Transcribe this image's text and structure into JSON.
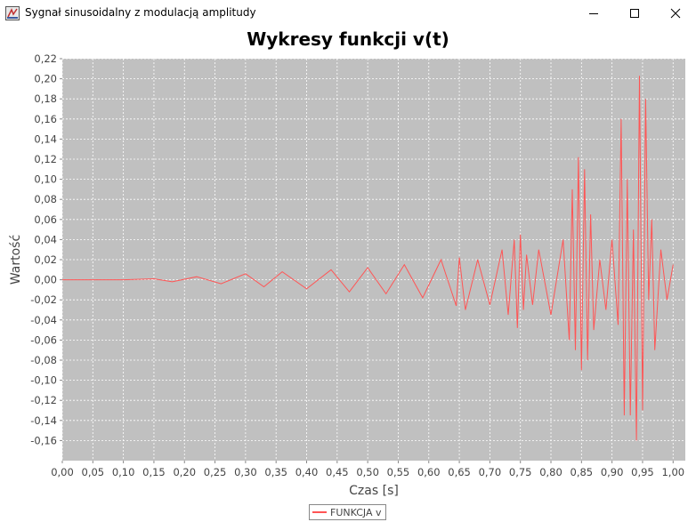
{
  "window": {
    "title": "Sygnał sinusoidalny z modulacją amplitudy",
    "icon": "java-app-icon",
    "controls": [
      "minimize-icon",
      "maximize-icon",
      "close-icon"
    ]
  },
  "chart_data": {
    "type": "line",
    "title": "Wykresy funkcji v(t)",
    "xlabel": "Czas [s]",
    "ylabel": "Wartość",
    "xlim": [
      0.0,
      1.02
    ],
    "ylim": [
      -0.18,
      0.22
    ],
    "x_ticks": [
      "0,00",
      "0,05",
      "0,10",
      "0,15",
      "0,20",
      "0,25",
      "0,30",
      "0,35",
      "0,40",
      "0,45",
      "0,50",
      "0,55",
      "0,60",
      "0,65",
      "0,70",
      "0,75",
      "0,80",
      "0,85",
      "0,90",
      "0,95",
      "1,00"
    ],
    "y_ticks": [
      "-0,16",
      "-0,14",
      "-0,12",
      "-0,10",
      "-0,08",
      "-0,06",
      "-0,04",
      "-0,02",
      "0,00",
      "0,02",
      "0,04",
      "0,06",
      "0,08",
      "0,10",
      "0,12",
      "0,14",
      "0,16",
      "0,18",
      "0,20",
      "0,22"
    ],
    "grid": true,
    "background": "#c0c0c0",
    "legend_position": "bottom-center",
    "series": [
      {
        "name": "FUNKCJA v",
        "color": "#ff5555",
        "x": [
          0.0,
          0.1,
          0.15,
          0.18,
          0.22,
          0.26,
          0.3,
          0.33,
          0.36,
          0.4,
          0.44,
          0.47,
          0.5,
          0.53,
          0.56,
          0.59,
          0.62,
          0.645,
          0.65,
          0.66,
          0.68,
          0.7,
          0.72,
          0.73,
          0.74,
          0.745,
          0.75,
          0.755,
          0.76,
          0.77,
          0.78,
          0.8,
          0.82,
          0.83,
          0.835,
          0.84,
          0.845,
          0.85,
          0.855,
          0.86,
          0.865,
          0.87,
          0.88,
          0.89,
          0.9,
          0.91,
          0.915,
          0.92,
          0.925,
          0.93,
          0.935,
          0.94,
          0.945,
          0.95,
          0.955,
          0.96,
          0.965,
          0.97,
          0.98,
          0.99,
          1.0
        ],
        "y": [
          0.0,
          0.0,
          0.001,
          -0.002,
          0.003,
          -0.004,
          0.006,
          -0.007,
          0.008,
          -0.009,
          0.01,
          -0.012,
          0.012,
          -0.014,
          0.015,
          -0.018,
          0.02,
          -0.026,
          0.022,
          -0.03,
          0.02,
          -0.025,
          0.03,
          -0.035,
          0.04,
          -0.048,
          0.045,
          -0.03,
          0.025,
          -0.025,
          0.03,
          -0.035,
          0.04,
          -0.06,
          0.09,
          -0.07,
          0.122,
          -0.09,
          0.11,
          -0.08,
          0.065,
          -0.05,
          0.02,
          -0.03,
          0.04,
          -0.045,
          0.16,
          -0.135,
          0.1,
          -0.135,
          0.05,
          -0.16,
          0.203,
          -0.13,
          0.18,
          -0.02,
          0.06,
          -0.07,
          0.03,
          -0.02,
          0.015
        ]
      }
    ]
  }
}
